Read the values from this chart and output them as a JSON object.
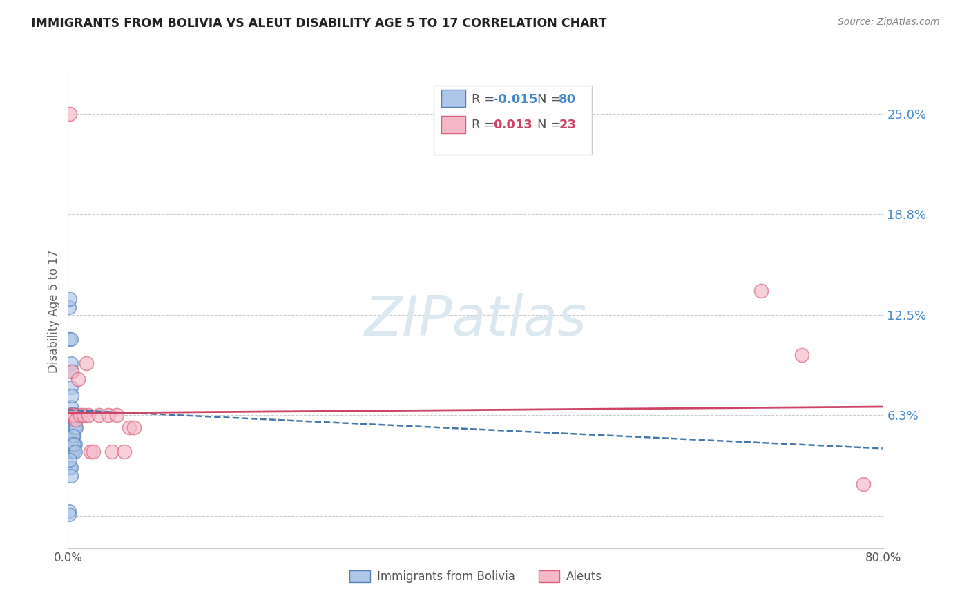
{
  "title": "IMMIGRANTS FROM BOLIVIA VS ALEUT DISABILITY AGE 5 TO 17 CORRELATION CHART",
  "source": "Source: ZipAtlas.com",
  "ylabel": "Disability Age 5 to 17",
  "yticks_right": [
    0.0,
    0.063,
    0.125,
    0.188,
    0.25
  ],
  "ytick_labels_right": [
    "",
    "6.3%",
    "12.5%",
    "18.8%",
    "25.0%"
  ],
  "xlim": [
    0.0,
    0.8
  ],
  "ylim": [
    -0.02,
    0.275
  ],
  "legend_blue_r": "-0.015",
  "legend_blue_n": "80",
  "legend_pink_r": "0.013",
  "legend_pink_n": "23",
  "blue_color": "#aec6e8",
  "pink_color": "#f5b8c8",
  "blue_edge": "#5580bb",
  "pink_edge": "#d9607a",
  "trend_blue_color": "#4477aa",
  "trend_pink_color": "#cc4466",
  "background_color": "#ffffff",
  "watermark_color": "#dce8f0",
  "blue_scatter_x": [
    0.001,
    0.001,
    0.001,
    0.001,
    0.001,
    0.002,
    0.002,
    0.002,
    0.002,
    0.002,
    0.002,
    0.002,
    0.002,
    0.003,
    0.003,
    0.003,
    0.003,
    0.003,
    0.003,
    0.003,
    0.003,
    0.003,
    0.003,
    0.004,
    0.004,
    0.004,
    0.004,
    0.004,
    0.004,
    0.004,
    0.005,
    0.005,
    0.005,
    0.005,
    0.005,
    0.005,
    0.005,
    0.006,
    0.006,
    0.006,
    0.006,
    0.006,
    0.007,
    0.007,
    0.007,
    0.007,
    0.007,
    0.008,
    0.008,
    0.008,
    0.001,
    0.002,
    0.002,
    0.002,
    0.003,
    0.003,
    0.003,
    0.004,
    0.004,
    0.005,
    0.005,
    0.006,
    0.006,
    0.007,
    0.007,
    0.008,
    0.003,
    0.002,
    0.004,
    0.003,
    0.002,
    0.003,
    0.004,
    0.005,
    0.001,
    0.002,
    0.003,
    0.001,
    0.001,
    0.002
  ],
  "blue_scatter_y": [
    0.13,
    0.11,
    0.063,
    0.05,
    0.003,
    0.135,
    0.063,
    0.063,
    0.063,
    0.063,
    0.063,
    0.06,
    0.055,
    0.11,
    0.095,
    0.08,
    0.068,
    0.063,
    0.063,
    0.063,
    0.06,
    0.05,
    0.04,
    0.09,
    0.075,
    0.063,
    0.063,
    0.055,
    0.05,
    0.04,
    0.063,
    0.063,
    0.063,
    0.06,
    0.055,
    0.05,
    0.04,
    0.063,
    0.063,
    0.06,
    0.055,
    0.045,
    0.063,
    0.063,
    0.063,
    0.055,
    0.045,
    0.063,
    0.063,
    0.055,
    0.063,
    0.063,
    0.045,
    0.03,
    0.063,
    0.045,
    0.03,
    0.063,
    0.045,
    0.063,
    0.05,
    0.063,
    0.045,
    0.063,
    0.04,
    0.063,
    0.063,
    0.063,
    0.063,
    0.063,
    0.063,
    0.063,
    0.063,
    0.063,
    0.063,
    0.035,
    0.025,
    0.063,
    0.001,
    0.063
  ],
  "pink_scatter_x": [
    0.002,
    0.003,
    0.004,
    0.005,
    0.006,
    0.008,
    0.01,
    0.012,
    0.015,
    0.018,
    0.02,
    0.022,
    0.025,
    0.03,
    0.04,
    0.043,
    0.048,
    0.055,
    0.06,
    0.065,
    0.68,
    0.72,
    0.78
  ],
  "pink_scatter_y": [
    0.25,
    0.063,
    0.09,
    0.063,
    0.063,
    0.06,
    0.085,
    0.063,
    0.063,
    0.095,
    0.063,
    0.04,
    0.04,
    0.063,
    0.063,
    0.04,
    0.063,
    0.04,
    0.055,
    0.055,
    0.14,
    0.1,
    0.02
  ],
  "blue_trend_x": [
    0.0,
    0.8
  ],
  "blue_trend_y": [
    0.066,
    0.042
  ],
  "pink_trend_x": [
    0.0,
    0.8
  ],
  "pink_trend_y": [
    0.064,
    0.068
  ]
}
